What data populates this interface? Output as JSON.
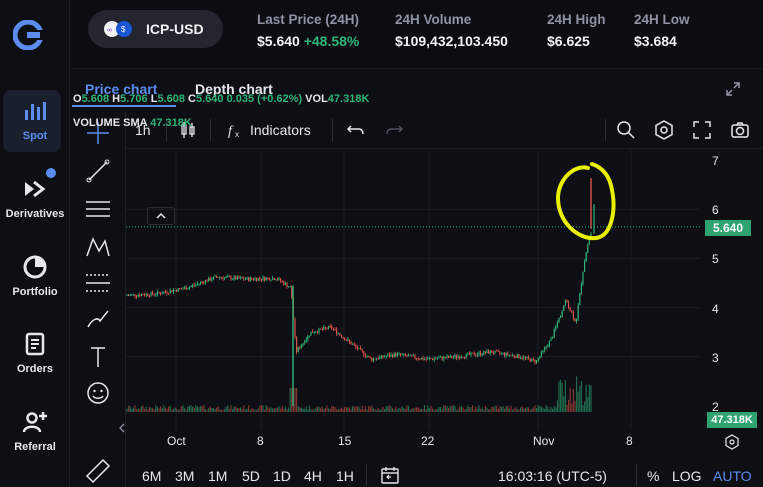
{
  "nav": {
    "items": [
      {
        "label": "Spot",
        "icon": "bar-chart-icon"
      },
      {
        "label": "Derivatives",
        "icon": "double-arrow-icon"
      },
      {
        "label": "Portfolio",
        "icon": "pie-chart-icon"
      },
      {
        "label": "Orders",
        "icon": "document-icon"
      },
      {
        "label": "Referral",
        "icon": "add-user-icon"
      }
    ]
  },
  "header": {
    "pair": "ICP-USD",
    "last_price_label": "Last Price (24H)",
    "last_price": "$5.640",
    "change": "+48.58%",
    "volume_label": "24H Volume",
    "volume": "$109,432,103.450",
    "high_label": "24H High",
    "high": "$6.625",
    "low_label": "24H Low",
    "low": "$3.684"
  },
  "tabs": {
    "price": "Price chart",
    "depth": "Depth chart"
  },
  "toolbar": {
    "interval": "1h",
    "indicators": "Indicators"
  },
  "legend": {
    "o_label": "O",
    "o": "5.608",
    "h_label": "H",
    "h": "5.706",
    "l_label": "L",
    "l": "5.608",
    "c_label": "C",
    "c": "5.640",
    "chg": "0.035 (+0.62%)",
    "vol_label": "VOL",
    "vol": "47.318K",
    "sma_label": "VOLUME SMA",
    "sma": "47.318K"
  },
  "yaxis": [
    "7",
    "6",
    "5",
    "4",
    "3",
    "2"
  ],
  "price_tag": "5.640",
  "vol_tag": "47.318K",
  "xaxis": [
    "Oct",
    "8",
    "15",
    "22",
    "Nov",
    "8"
  ],
  "bottom": {
    "ranges": [
      "6M",
      "3M",
      "1M",
      "5D",
      "1D",
      "4H",
      "1H"
    ],
    "time": "16:03:16 (UTC-5)",
    "pct": "%",
    "log": "LOG",
    "auto": "AUTO"
  },
  "colors": {
    "accent": "#5b8def",
    "up": "#2fb57a",
    "down": "#e0544b",
    "highlight": "#e8f000"
  }
}
